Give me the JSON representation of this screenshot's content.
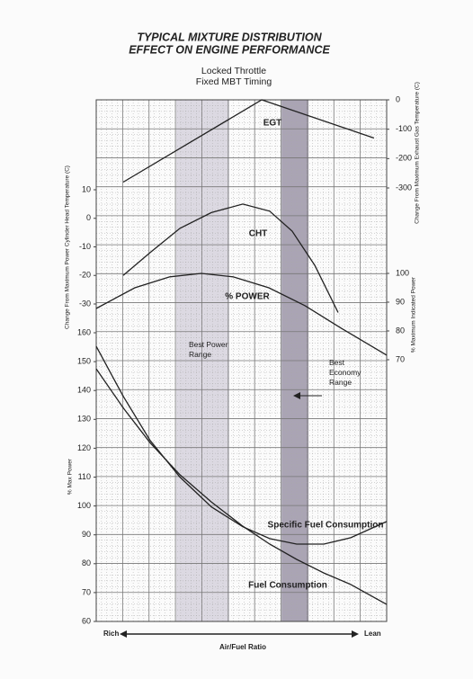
{
  "chart_data": {
    "type": "line",
    "title": [
      "TYPICAL MIXTURE DISTRIBUTION",
      "EFFECT ON ENGINE PERFORMANCE"
    ],
    "subtitle": [
      "Locked Throttle",
      "Fixed MBT Timing"
    ],
    "x_label": "Air/Fuel Ratio",
    "x_start_label": "Rich",
    "x_end_label": "Lean",
    "xlim": [
      0,
      11
    ],
    "grid": true,
    "y_label": "% Max Power",
    "ylim": [
      60,
      160
    ],
    "yticks": [
      60,
      70,
      80,
      90,
      100,
      110,
      120,
      130,
      140,
      150,
      160
    ],
    "y2_label": "Change From Maximum Power Cylinder Head Temperature (C)",
    "y2lim": [
      -30,
      10
    ],
    "y2ticks": [
      -30,
      -20,
      -10,
      0,
      10
    ],
    "y3_label": "Change From Maximum Exhaust Gas Temperature (C)",
    "y3lim": [
      -300,
      0
    ],
    "y3ticks": [
      -300,
      -200,
      -100,
      0
    ],
    "y4_label": "% Maximum Indicated Power",
    "y4lim": [
      70,
      100
    ],
    "y4ticks": [
      70,
      80,
      90,
      100
    ],
    "bands": [
      {
        "label": "Best Power Range",
        "x": [
          3.03,
          5.04
        ],
        "color": "#dcd9e2"
      },
      {
        "label": "Best Economy Range",
        "x": [
          7.02,
          8.04
        ],
        "color": "#aaa4b4"
      }
    ],
    "series": [
      {
        "name": "EGT",
        "axis": "y3",
        "color": "#222222",
        "x": [
          1.02,
          6.27,
          10.52
        ],
        "values": [
          -280,
          0,
          -130
        ]
      },
      {
        "name": "CHT",
        "axis": "y2",
        "color": "#222222",
        "x": [
          1.02,
          2.04,
          3.17,
          4.36,
          5.55,
          6.57,
          7.42,
          8.28,
          9.16
        ],
        "values": [
          -20,
          -12,
          -3.5,
          2,
          5,
          2.5,
          -4.5,
          -16.5,
          -33
        ]
      },
      {
        "name": "% POWER",
        "axis": "y4",
        "color": "#222222",
        "x": [
          0,
          1.46,
          2.79,
          3.98,
          5.18,
          6.54,
          7.9,
          9.27,
          11
        ],
        "values": [
          87.8,
          95,
          98.8,
          100,
          98.8,
          95,
          88.8,
          81,
          71.6
        ]
      },
      {
        "name": "Specific Fuel Consumption",
        "axis": "y",
        "color": "#222222",
        "x": [
          0,
          1.02,
          2.04,
          3.17,
          4.36,
          5.55,
          6.57,
          7.59,
          8.62,
          9.64,
          11
        ],
        "values": [
          155.3,
          138,
          122.7,
          110,
          99.7,
          92.8,
          88.7,
          86.8,
          86.8,
          89,
          94.6
        ]
      },
      {
        "name": "Fuel Consumption",
        "axis": "y",
        "color": "#222222",
        "x": [
          0,
          1.02,
          2.04,
          3.17,
          4.36,
          5.55,
          6.57,
          7.59,
          8.62,
          9.64,
          11
        ],
        "values": [
          147.5,
          134,
          121.9,
          110.8,
          101.4,
          93,
          86.8,
          81.5,
          76.8,
          72.8,
          65.9
        ]
      }
    ]
  }
}
